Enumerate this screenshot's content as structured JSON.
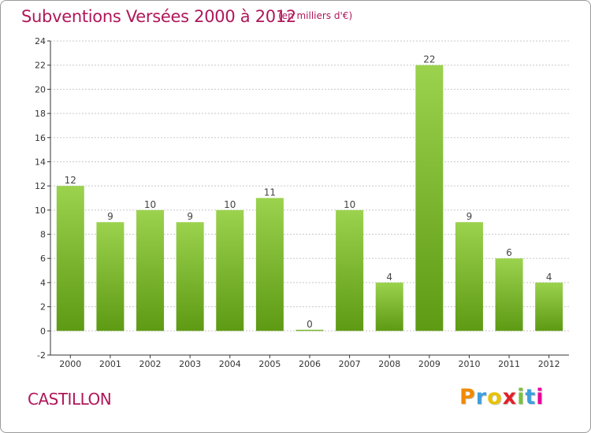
{
  "header": {
    "title": "Subventions Versées 2000 à 2012",
    "subtitle": "(en milliers d'€)"
  },
  "footer": {
    "commune": "CASTILLON",
    "logo": "Proxiti",
    "logo_letters": [
      {
        "ch": "P",
        "color": "#f08a00"
      },
      {
        "ch": "r",
        "color": "#3c9fdc"
      },
      {
        "ch": "o",
        "color": "#e8c200"
      },
      {
        "ch": "x",
        "color": "#e0202a"
      },
      {
        "ch": "i",
        "color": "#7cc13a"
      },
      {
        "ch": "t",
        "color": "#3c9fdc"
      },
      {
        "ch": "i",
        "color": "#e8009a"
      }
    ]
  },
  "chart_data": {
    "type": "bar",
    "title": "Subventions Versées 2000 à 2012",
    "subtitle": "(en milliers d'€)",
    "xlabel": "",
    "ylabel": "",
    "categories": [
      "2000",
      "2001",
      "2002",
      "2003",
      "2004",
      "2005",
      "2006",
      "2007",
      "2008",
      "2009",
      "2010",
      "2011",
      "2012"
    ],
    "values": [
      12,
      9,
      10,
      9,
      10,
      11,
      0,
      10,
      4,
      22,
      9,
      6,
      4
    ],
    "ylim": [
      -2,
      24
    ],
    "yticks": [
      -2,
      0,
      2,
      4,
      6,
      8,
      10,
      12,
      14,
      16,
      18,
      20,
      22,
      24
    ],
    "grid": true,
    "legend": "none",
    "bar_color_top": "#9bd24e",
    "bar_color_bottom": "#5e9a14"
  }
}
